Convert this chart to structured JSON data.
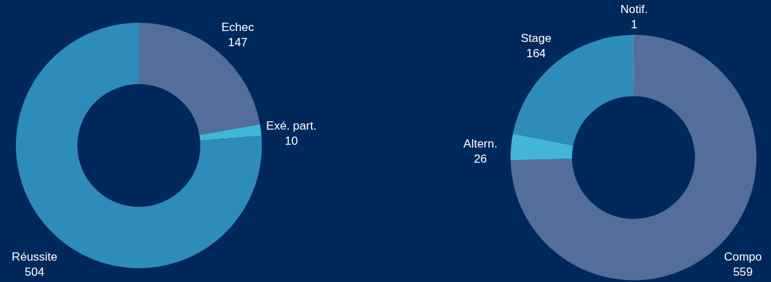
{
  "chart_data": [
    {
      "type": "donut",
      "categories": [
        "Echec",
        "Exé. part.",
        "Réussite"
      ],
      "values": [
        147,
        10,
        504
      ],
      "colors": [
        "#536e9a",
        "#41b6d9",
        "#2e8cbd"
      ],
      "data_labels": true,
      "legend": false
    },
    {
      "type": "donut",
      "categories": [
        "Notif.",
        "Compo",
        "Altern.",
        "Stage"
      ],
      "values": [
        1,
        559,
        26,
        164
      ],
      "colors": [
        "#6f86ad",
        "#536e9a",
        "#41b6d9",
        "#2e8cbd"
      ],
      "data_labels": true,
      "legend": false
    }
  ]
}
